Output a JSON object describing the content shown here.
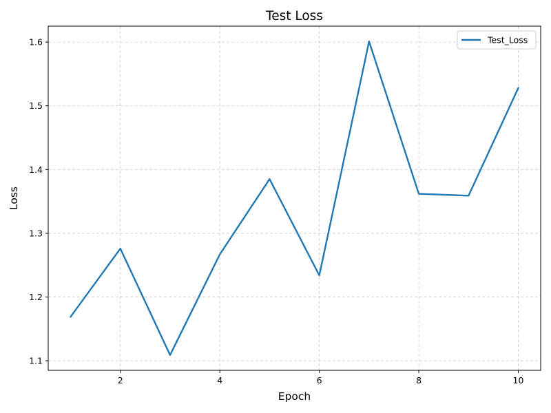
{
  "chart_data": {
    "type": "line",
    "title": "Test Loss",
    "xlabel": "Epoch",
    "ylabel": "Loss",
    "x": [
      1,
      2,
      3,
      4,
      5,
      6,
      7,
      8,
      9,
      10
    ],
    "x_ticks": [
      2,
      4,
      6,
      8,
      10
    ],
    "y_ticks": [
      1.1,
      1.2,
      1.3,
      1.4,
      1.5,
      1.6
    ],
    "y_tick_labels": [
      "1.1",
      "1.2",
      "1.3",
      "1.4",
      "1.5",
      "1.6"
    ],
    "xlim": [
      0.55,
      10.45
    ],
    "ylim": [
      1.085,
      1.625
    ],
    "grid": true,
    "legend_position": "top-right",
    "series": [
      {
        "name": "Test_Loss",
        "color": "#1f77b4",
        "values": [
          1.169,
          1.276,
          1.109,
          1.267,
          1.385,
          1.234,
          1.601,
          1.362,
          1.359,
          1.528
        ]
      }
    ]
  }
}
